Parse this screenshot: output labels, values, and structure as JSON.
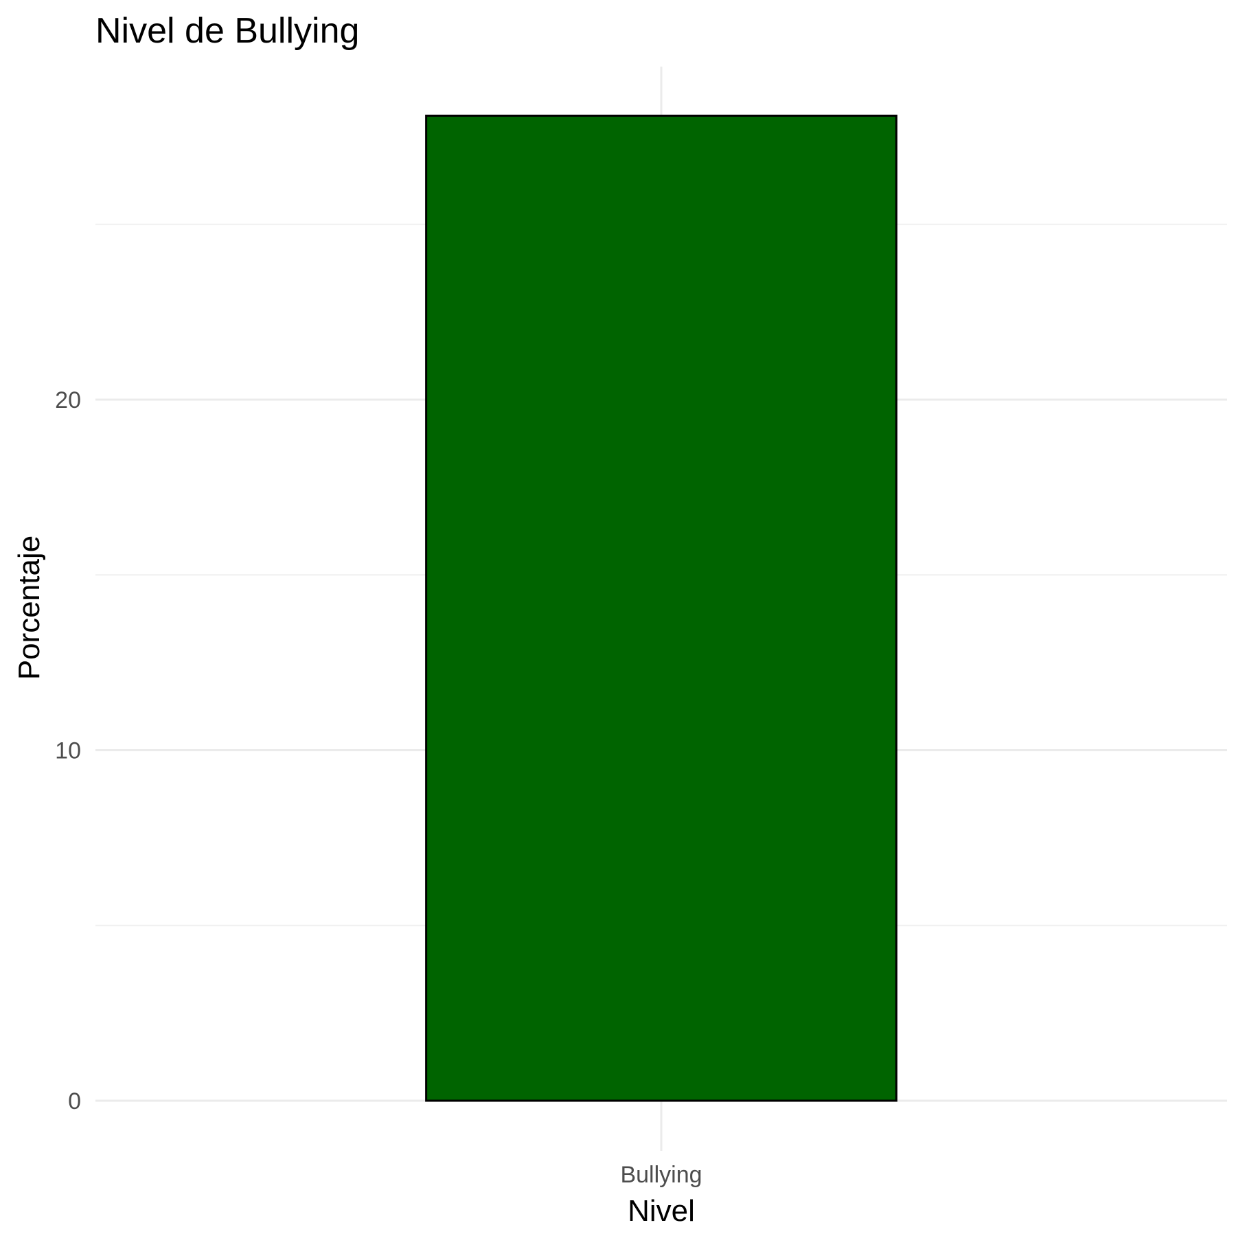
{
  "chart_data": {
    "type": "bar",
    "title": "Nivel de Bullying",
    "xlabel": "Nivel",
    "ylabel": "Porcentaje",
    "categories": [
      "Bullying"
    ],
    "values": [
      28.1
    ],
    "y_ticks": [
      0,
      10,
      20
    ],
    "ylim": [
      0,
      29.5
    ],
    "grid": true,
    "bar_fill": "#006400",
    "bar_outline": "#000000"
  }
}
